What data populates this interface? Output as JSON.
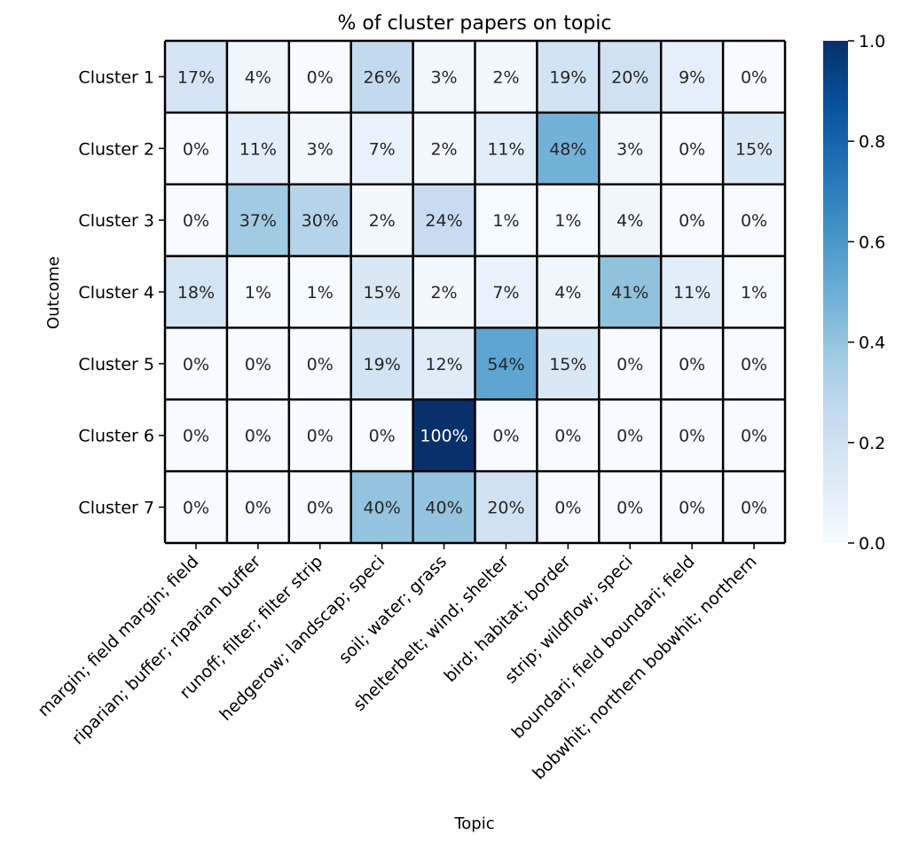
{
  "chart_data": {
    "type": "heatmap",
    "title": "% of cluster papers on topic",
    "xlabel": "Topic",
    "ylabel": "Outcome",
    "rows": [
      "Cluster 1",
      "Cluster 2",
      "Cluster 3",
      "Cluster 4",
      "Cluster 5",
      "Cluster 6",
      "Cluster 7"
    ],
    "columns": [
      "margin; field margin; field",
      "riparian; buffer; riparian buffer",
      "runoff; filter; filter strip",
      "hedgerow; landscap; speci",
      "soil; water; grass",
      "shelterbelt; wind; shelter",
      "bird; habitat; border",
      "strip; wildflow; speci",
      "boundari; field boundari; field",
      "bobwhit; northern bobwhit; northern"
    ],
    "values": [
      [
        0.17,
        0.04,
        0.0,
        0.26,
        0.03,
        0.02,
        0.19,
        0.2,
        0.09,
        0.0
      ],
      [
        0.0,
        0.11,
        0.03,
        0.07,
        0.02,
        0.11,
        0.48,
        0.03,
        0.0,
        0.15
      ],
      [
        0.0,
        0.37,
        0.3,
        0.02,
        0.24,
        0.01,
        0.01,
        0.04,
        0.0,
        0.0
      ],
      [
        0.18,
        0.01,
        0.01,
        0.15,
        0.02,
        0.07,
        0.04,
        0.41,
        0.11,
        0.01
      ],
      [
        0.0,
        0.0,
        0.0,
        0.19,
        0.12,
        0.54,
        0.15,
        0.0,
        0.0,
        0.0
      ],
      [
        0.0,
        0.0,
        0.0,
        0.0,
        1.0,
        0.0,
        0.0,
        0.0,
        0.0,
        0.0
      ],
      [
        0.0,
        0.0,
        0.0,
        0.4,
        0.4,
        0.2,
        0.0,
        0.0,
        0.0,
        0.0
      ]
    ],
    "cell_labels": [
      [
        "17%",
        "4%",
        "0%",
        "26%",
        "3%",
        "2%",
        "19%",
        "20%",
        "9%",
        "0%"
      ],
      [
        "0%",
        "11%",
        "3%",
        "7%",
        "2%",
        "11%",
        "48%",
        "3%",
        "0%",
        "15%"
      ],
      [
        "0%",
        "37%",
        "30%",
        "2%",
        "24%",
        "1%",
        "1%",
        "4%",
        "0%",
        "0%"
      ],
      [
        "18%",
        "1%",
        "1%",
        "15%",
        "2%",
        "7%",
        "4%",
        "41%",
        "11%",
        "1%"
      ],
      [
        "0%",
        "0%",
        "0%",
        "19%",
        "12%",
        "54%",
        "15%",
        "0%",
        "0%",
        "0%"
      ],
      [
        "0%",
        "0%",
        "0%",
        "0%",
        "100%",
        "0%",
        "0%",
        "0%",
        "0%",
        "0%"
      ],
      [
        "0%",
        "0%",
        "0%",
        "40%",
        "40%",
        "20%",
        "0%",
        "0%",
        "0%",
        "0%"
      ]
    ],
    "colorscale": "Blues",
    "colorbar": {
      "range": [
        0.0,
        1.0
      ],
      "ticks": [
        0.0,
        0.2,
        0.4,
        0.6,
        0.8,
        1.0
      ],
      "tick_labels": [
        "0.0",
        "0.2",
        "0.4",
        "0.6",
        "0.8",
        "1.0"
      ]
    },
    "grid_lines": true,
    "grid_color": "#000000"
  }
}
